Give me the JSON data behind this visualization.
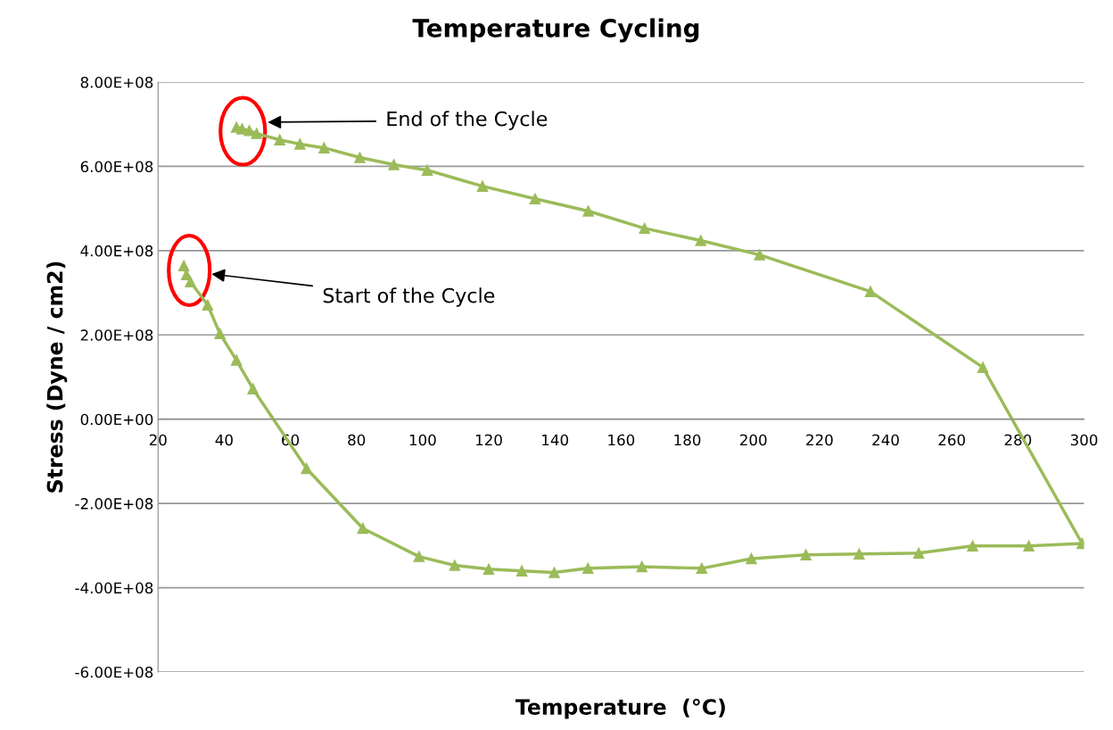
{
  "chart_data": {
    "type": "line",
    "title": "Temperature Cycling",
    "xlabel": "Temperature  (°C)",
    "ylabel": "Stress (Dyne / cm2)",
    "x": [
      27.8,
      28.6,
      29.8,
      35,
      38.7,
      43.7,
      48.7,
      64.9,
      81.9,
      98.9,
      109.7,
      120,
      130,
      139.8,
      150,
      166.3,
      184.4,
      199.4,
      215.9,
      232,
      250,
      266.3,
      283.3,
      299.4,
      269.4,
      235.4,
      201.9,
      184.1,
      167.1,
      150.1,
      134,
      118.1,
      101.4,
      91.3,
      81,
      70.2,
      62.9,
      56.8,
      49.8,
      47.6,
      45.4,
      43.7
    ],
    "series": [
      {
        "color": "#9bbb59",
        "values": [
          364000000,
          343000000,
          326000000,
          271000000,
          203000000,
          140000000,
          72000000,
          -117000000,
          -259000000,
          -326000000,
          -347000000,
          -356000000,
          -360000000,
          -364000000,
          -354000000,
          -350000000,
          -354000000,
          -331000000,
          -322000000,
          -320000000,
          -318000000,
          -301000000,
          -301000000,
          -295000000,
          123000000,
          303000000,
          390000000,
          424000000,
          453000000,
          494000000,
          523000000,
          553000000,
          591000000,
          604000000,
          621000000,
          644000000,
          653000000,
          663000000,
          678000000,
          685000000,
          689000000,
          693000000
        ]
      }
    ],
    "xlim": [
      20,
      300
    ],
    "xticks": [
      20,
      40,
      60,
      80,
      100,
      120,
      140,
      160,
      180,
      200,
      220,
      240,
      260,
      280,
      300
    ],
    "ylim": [
      -600000000,
      800000000
    ],
    "yticks": [
      {
        "value": -600000000,
        "label": "-6.00E+08"
      },
      {
        "value": -400000000,
        "label": "-4.00E+08"
      },
      {
        "value": -200000000,
        "label": "-2.00E+08"
      },
      {
        "value": 0,
        "label": "0.00E+00"
      },
      {
        "value": 200000000,
        "label": "2.00E+08"
      },
      {
        "value": 400000000,
        "label": "4.00E+08"
      },
      {
        "value": 600000000,
        "label": "6.00E+08"
      },
      {
        "value": 800000000,
        "label": "8.00E+08"
      }
    ],
    "grid": "y",
    "legend": false,
    "marker": "triangle",
    "line_style": "solid",
    "annotations": [
      "End of the Cycle",
      "Start of the Cycle"
    ]
  }
}
